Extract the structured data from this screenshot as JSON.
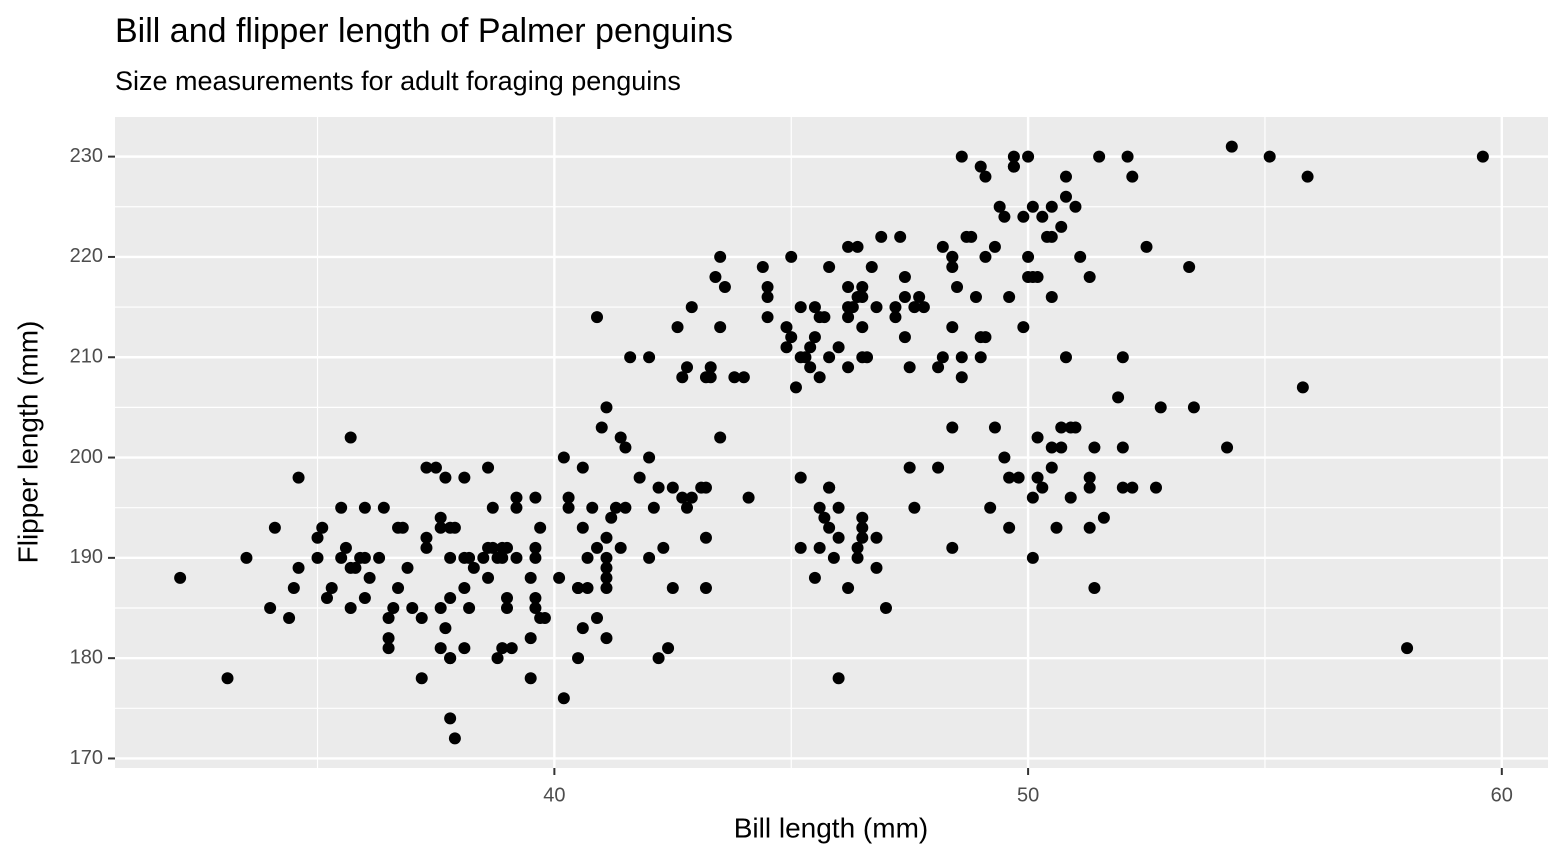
{
  "chart_data": {
    "type": "scatter",
    "title": "Bill and flipper length of Palmer penguins",
    "subtitle": "Size measurements for adult foraging penguins",
    "x_label": "Bill length (mm)",
    "y_label": "Flipper length (mm)",
    "color": "#000000",
    "grid": true,
    "xlim": [
      30.725,
      60.975
    ],
    "ylim": [
      169.05,
      233.95
    ],
    "xticks": [
      40,
      50,
      60
    ],
    "yticks": [
      170,
      180,
      190,
      200,
      210,
      220,
      230
    ],
    "x_minor_grid": [
      35,
      45,
      55
    ],
    "y_minor_grid": [
      175,
      185,
      195,
      205,
      215,
      225
    ],
    "x": [
      32.1,
      33.1,
      33.5,
      34.0,
      34.1,
      34.4,
      34.5,
      34.6,
      34.6,
      35.0,
      35.0,
      35.1,
      35.2,
      35.3,
      35.5,
      35.5,
      35.6,
      35.7,
      35.7,
      35.7,
      35.8,
      35.9,
      36.0,
      36.0,
      36.0,
      36.1,
      36.3,
      36.4,
      36.5,
      36.5,
      36.5,
      36.6,
      36.7,
      36.7,
      36.8,
      36.9,
      37.0,
      37.2,
      37.2,
      37.3,
      37.3,
      37.3,
      37.5,
      37.6,
      37.6,
      37.6,
      37.6,
      37.7,
      37.7,
      37.8,
      37.8,
      37.8,
      37.8,
      37.8,
      37.8,
      37.9,
      37.9,
      38.1,
      38.1,
      38.1,
      38.1,
      38.2,
      38.2,
      38.3,
      38.5,
      38.6,
      38.6,
      38.6,
      38.7,
      38.7,
      38.8,
      38.8,
      38.9,
      38.9,
      38.9,
      39.0,
      39.0,
      39.0,
      39.1,
      39.2,
      39.2,
      39.2,
      39.5,
      39.5,
      39.5,
      39.6,
      39.6,
      39.6,
      39.6,
      39.6,
      39.7,
      39.7,
      39.8,
      40.1,
      40.2,
      40.2,
      40.3,
      40.3,
      40.5,
      40.5,
      40.5,
      40.6,
      40.6,
      40.6,
      40.7,
      40.7,
      40.8,
      40.9,
      40.9,
      40.9,
      41.0,
      41.1,
      41.1,
      41.1,
      41.1,
      41.1,
      41.1,
      41.1,
      41.2,
      41.3,
      41.4,
      41.4,
      41.5,
      41.5,
      41.6,
      41.8,
      42.0,
      42.0,
      42.0,
      42.1,
      42.2,
      42.2,
      42.3,
      42.4,
      42.5,
      42.5,
      42.6,
      42.7,
      42.7,
      42.8,
      42.8,
      42.9,
      42.9,
      43.1,
      43.2,
      43.2,
      43.2,
      43.2,
      43.3,
      43.3,
      43.4,
      43.5,
      43.5,
      43.5,
      43.6,
      43.8,
      44.0,
      44.1,
      44.4,
      44.5,
      44.5,
      44.5,
      44.9,
      44.9,
      45.0,
      45.0,
      45.1,
      45.2,
      45.2,
      45.2,
      45.2,
      45.3,
      45.4,
      45.5,
      45.5,
      45.5,
      45.4,
      45.6,
      45.6,
      45.6,
      45.7,
      45.6,
      45.7,
      45.8,
      45.8,
      45.8,
      45.8,
      45.8,
      45.9,
      46.0,
      46.0,
      46.0,
      46.0,
      46.2,
      46.2,
      46.2,
      46.2,
      46.2,
      46.2,
      46.3,
      46.4,
      46.4,
      46.4,
      46.4,
      46.5,
      46.5,
      46.5,
      46.5,
      46.5,
      46.5,
      46.5,
      46.6,
      46.7,
      46.8,
      46.8,
      46.8,
      46.9,
      47.0,
      47.2,
      47.2,
      47.3,
      47.4,
      47.4,
      47.4,
      47.5,
      47.5,
      47.6,
      47.6,
      47.7,
      47.8,
      48.1,
      48.1,
      48.2,
      48.2,
      48.4,
      48.4,
      48.4,
      48.4,
      48.4,
      48.4,
      48.5,
      48.6,
      48.6,
      48.6,
      48.7,
      48.8,
      48.9,
      49.0,
      49.0,
      49.0,
      49.1,
      49.1,
      49.1,
      49.2,
      49.3,
      49.3,
      49.4,
      49.5,
      49.5,
      49.6,
      49.6,
      49.6,
      49.7,
      49.7,
      49.7,
      49.8,
      49.9,
      49.9,
      50.0,
      50.0,
      50.0,
      50.1,
      50.1,
      50.1,
      50.1,
      50.2,
      50.2,
      50.2,
      50.3,
      50.3,
      50.4,
      50.5,
      50.5,
      50.5,
      50.5,
      50.5,
      50.6,
      50.7,
      50.7,
      50.7,
      50.8,
      50.8,
      50.8,
      50.9,
      50.9,
      51.0,
      51.0,
      51.1,
      51.3,
      51.3,
      51.3,
      51.3,
      51.4,
      51.4,
      51.5,
      51.6,
      51.9,
      52.0,
      52.0,
      52.0,
      52.1,
      52.2,
      52.2,
      52.5,
      52.7,
      52.8,
      53.4,
      53.5,
      54.2,
      54.3,
      55.1,
      55.8,
      55.9,
      58.0,
      59.6
    ],
    "y": [
      188,
      178,
      190,
      185,
      193,
      184,
      187,
      189,
      198,
      190,
      192,
      193,
      186,
      187,
      195,
      190,
      191,
      185,
      202,
      189,
      189,
      190,
      190,
      186,
      195,
      188,
      190,
      195,
      181,
      182,
      184,
      185,
      193,
      187,
      193,
      189,
      185,
      178,
      184,
      199,
      191,
      192,
      199,
      185,
      181,
      194,
      193,
      183,
      198,
      180,
      186,
      190,
      180,
      193,
      174,
      172,
      193,
      181,
      187,
      190,
      198,
      190,
      185,
      189,
      190,
      188,
      191,
      199,
      195,
      191,
      190,
      180,
      190,
      181,
      191,
      186,
      185,
      191,
      181,
      196,
      195,
      190,
      178,
      182,
      188,
      190,
      186,
      196,
      191,
      185,
      193,
      184,
      184,
      188,
      176,
      200,
      196,
      195,
      187,
      180,
      187,
      199,
      193,
      183,
      190,
      187,
      195,
      184,
      191,
      214,
      203,
      190,
      189,
      192,
      188,
      182,
      205,
      187,
      194,
      195,
      202,
      191,
      195,
      201,
      210,
      198,
      200,
      190,
      210,
      195,
      180,
      197,
      191,
      181,
      187,
      197,
      213,
      196,
      208,
      195,
      209,
      196,
      215,
      197,
      208,
      187,
      192,
      197,
      208,
      209,
      218,
      213,
      220,
      202,
      217,
      208,
      208,
      196,
      219,
      216,
      217,
      214,
      211,
      213,
      220,
      212,
      207,
      210,
      191,
      198,
      215,
      210,
      209,
      188,
      215,
      212,
      211,
      208,
      195,
      214,
      214,
      191,
      194,
      193,
      219,
      197,
      210,
      197,
      190,
      195,
      192,
      178,
      211,
      215,
      187,
      217,
      209,
      214,
      221,
      215,
      221,
      216,
      191,
      190,
      216,
      217,
      213,
      210,
      192,
      193,
      194,
      210,
      219,
      189,
      215,
      192,
      222,
      185,
      214,
      215,
      222,
      216,
      212,
      218,
      199,
      209,
      215,
      195,
      216,
      215,
      209,
      199,
      221,
      210,
      213,
      220,
      203,
      219,
      220,
      191,
      217,
      230,
      210,
      208,
      222,
      222,
      216,
      210,
      212,
      229,
      212,
      220,
      228,
      195,
      221,
      203,
      225,
      224,
      200,
      193,
      216,
      198,
      229,
      230,
      229,
      198,
      213,
      224,
      220,
      218,
      230,
      225,
      190,
      218,
      196,
      218,
      202,
      198,
      197,
      224,
      222,
      225,
      199,
      201,
      222,
      216,
      193,
      223,
      203,
      201,
      226,
      210,
      228,
      196,
      203,
      225,
      203,
      220,
      193,
      197,
      218,
      198,
      201,
      187,
      230,
      194,
      206,
      197,
      210,
      201,
      230,
      228,
      197,
      221,
      197,
      205,
      219,
      205,
      201,
      231,
      230,
      207,
      228,
      181,
      230
    ]
  }
}
